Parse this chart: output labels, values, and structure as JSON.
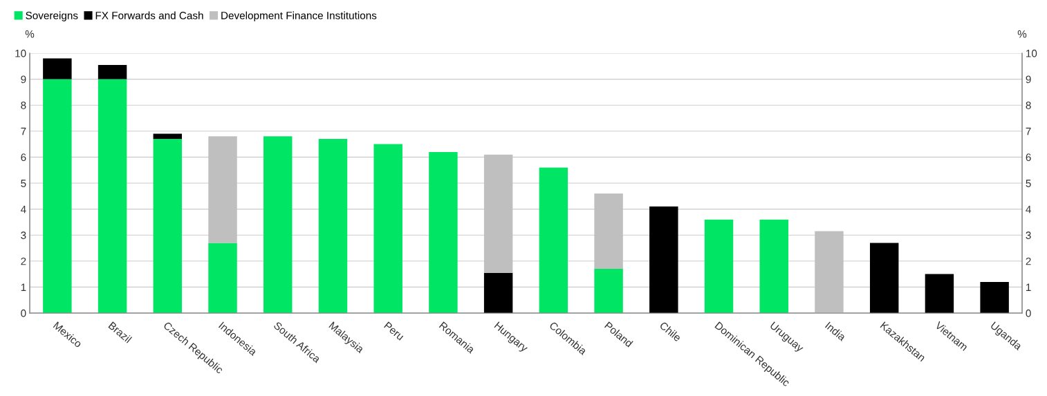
{
  "chart_data": {
    "type": "bar",
    "stacked": true,
    "ylabel": "%",
    "y2label": "%",
    "categories": [
      "Mexico",
      "Brazil",
      "Czech Republic",
      "Indonesia",
      "South Africa",
      "Malaysia",
      "Peru",
      "Romania",
      "Hungary",
      "Colombia",
      "Poland",
      "Chile",
      "Dominican Republic",
      "Uruguay",
      "India",
      "Kazakhstan",
      "Vietnam",
      "Uganda"
    ],
    "series": [
      {
        "name": "Sovereigns",
        "color": "#00e564",
        "values": [
          9.0,
          9.0,
          6.7,
          2.7,
          6.8,
          6.7,
          6.5,
          6.2,
          null,
          5.6,
          1.7,
          null,
          3.6,
          3.6,
          null,
          null,
          null,
          null
        ]
      },
      {
        "name": "FX Forwards and Cash",
        "color": "#000000",
        "values": [
          0.8,
          0.55,
          0.2,
          null,
          null,
          null,
          null,
          null,
          1.55,
          null,
          null,
          4.1,
          null,
          null,
          null,
          2.7,
          1.5,
          1.2
        ]
      },
      {
        "name": "Development Finance Institutions",
        "color": "#bfbfbf",
        "values": [
          null,
          null,
          null,
          4.1,
          null,
          null,
          null,
          null,
          4.55,
          null,
          2.9,
          null,
          null,
          null,
          3.15,
          null,
          null,
          null
        ]
      }
    ],
    "ylim": [
      0,
      10
    ],
    "yticks": [
      0,
      1,
      2,
      3,
      4,
      5,
      6,
      7,
      8,
      9,
      10
    ],
    "y2lim": [
      0,
      10
    ],
    "y2ticks": [
      0,
      1,
      2,
      3,
      4,
      5,
      6,
      7,
      8,
      9,
      10
    ],
    "grid": "y",
    "legend": "top left"
  }
}
